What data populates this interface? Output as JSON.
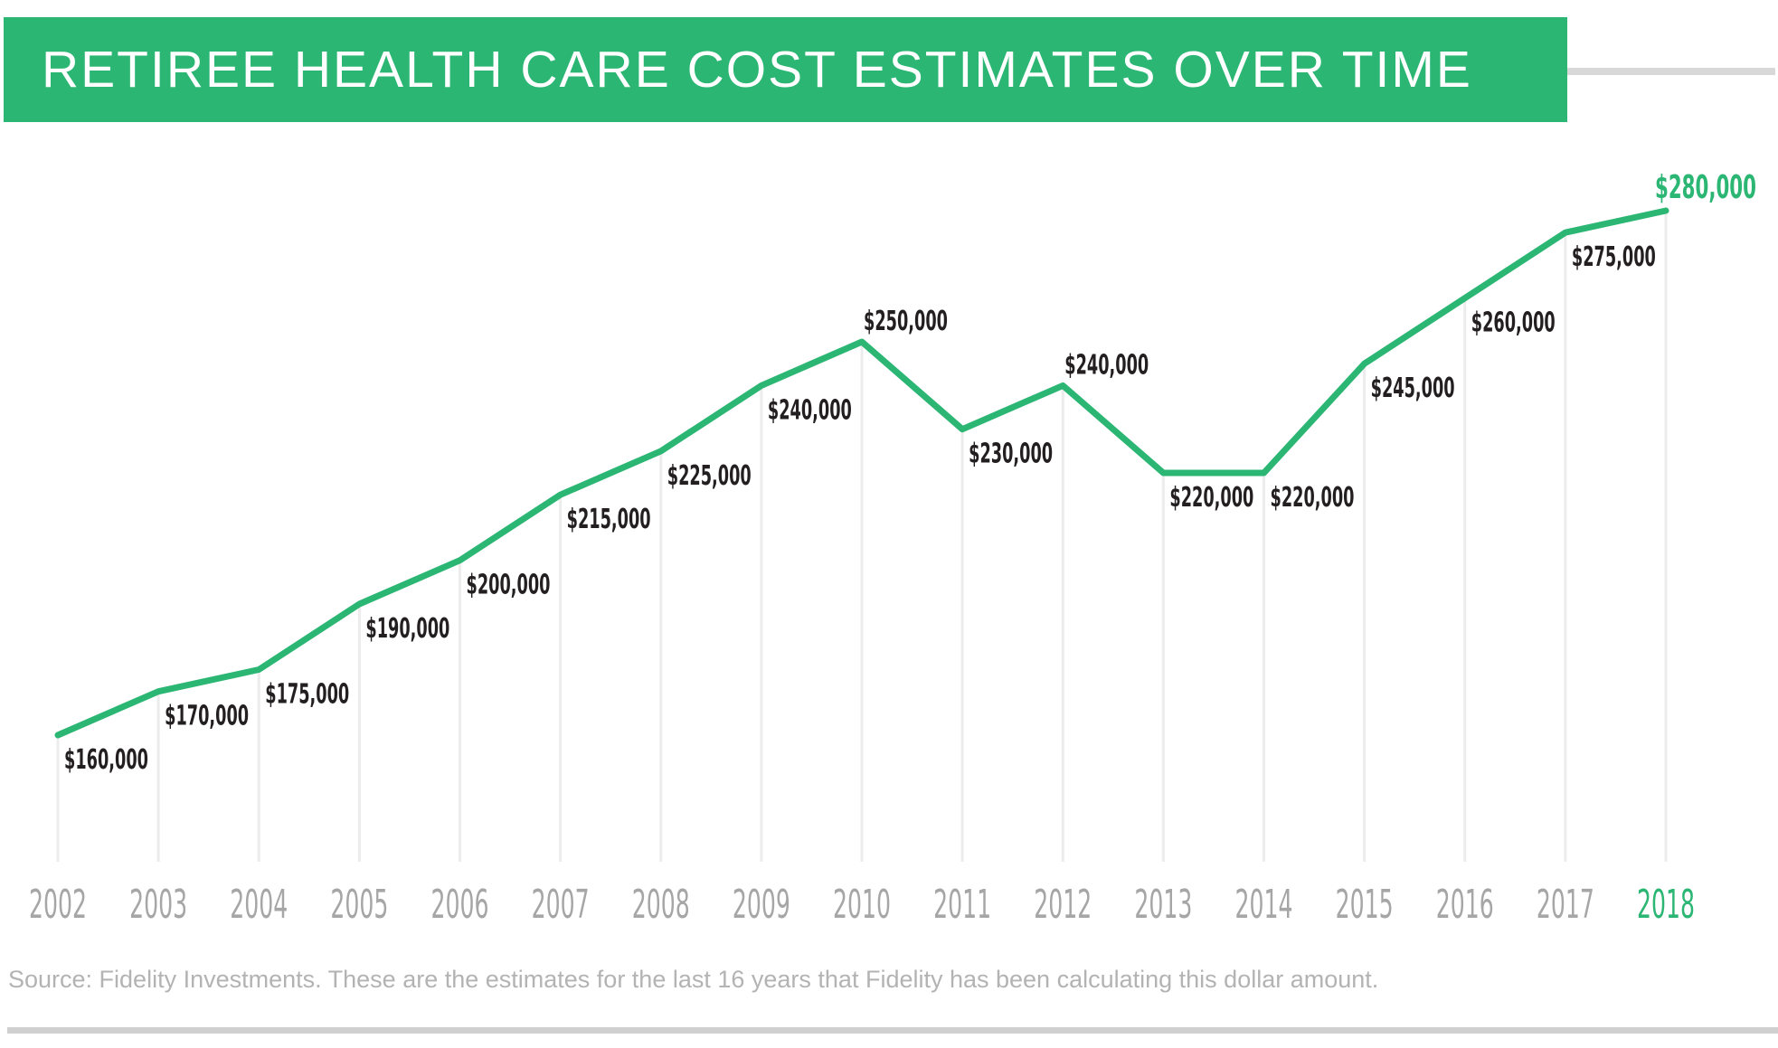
{
  "header": {
    "title": "RETIREE HEALTH CARE COST ESTIMATES OVER TIME",
    "banner_color": "#2bb673",
    "title_color": "#ffffff"
  },
  "source": {
    "text": "Source: Fidelity Investments. These are the estimates for the last 16 years that Fidelity has been calculating this dollar amount."
  },
  "chart_data": {
    "type": "line",
    "title": "RETIREE HEALTH CARE COST ESTIMATES OVER TIME",
    "categories": [
      "2002",
      "2003",
      "2004",
      "2005",
      "2006",
      "2007",
      "2008",
      "2009",
      "2010",
      "2011",
      "2012",
      "2013",
      "2014",
      "2015",
      "2016",
      "2017",
      "2018"
    ],
    "values": [
      160000,
      170000,
      175000,
      190000,
      200000,
      215000,
      225000,
      240000,
      250000,
      230000,
      240000,
      220000,
      220000,
      245000,
      260000,
      275000,
      280000
    ],
    "data_labels": [
      "$160,000",
      "$170,000",
      "$175,000",
      "$190,000",
      "$200,000",
      "$215,000",
      "$225,000",
      "$240,000",
      "$250,000",
      "$230,000",
      "$240,000",
      "$220,000",
      "$220,000",
      "$245,000",
      "$260,000",
      "$275,000",
      "$280,000"
    ],
    "label_positions": [
      "below",
      "below",
      "below",
      "below",
      "below",
      "below",
      "below",
      "below",
      "above",
      "below",
      "above",
      "below",
      "below",
      "below",
      "below",
      "below",
      "above"
    ],
    "xlabel": "",
    "ylabel": "",
    "ylim": [
      150000,
      290000
    ],
    "grid": "vertical-drop-lines",
    "legend": "none",
    "line_color": "#2bb673",
    "label_color": "#231f20",
    "final_label_color": "#2bb673",
    "axis_label_color": "#a6a6a6",
    "final_axis_label_color": "#2bb673",
    "gridline_color": "#ececec"
  }
}
